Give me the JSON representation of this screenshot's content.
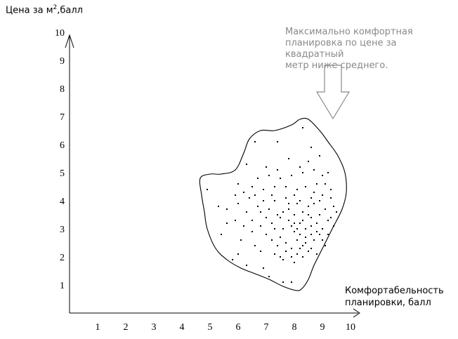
{
  "y_axis_title": {
    "prefix": "Цена за м",
    "superscript": "2",
    "suffix": ",балл"
  },
  "x_axis_title": {
    "line1": "Комфортабельность",
    "line2": "планировки, балл"
  },
  "annotation": {
    "lines": [
      "Максимально комфортная",
      "планировка по цене за квадратный",
      "метр ниже среднего."
    ]
  },
  "x_ticks": [
    "1",
    "2",
    "3",
    "4",
    "5",
    "6",
    "7",
    "8",
    "9",
    "10"
  ],
  "y_ticks": [
    "1",
    "2",
    "3",
    "4",
    "5",
    "6",
    "7",
    "8",
    "9",
    "10"
  ],
  "chart_data": {
    "type": "scatter",
    "xlim": [
      0,
      10
    ],
    "ylim": [
      0,
      10
    ],
    "xlabel": "Комфортабельность планировки, балл",
    "ylabel": "Цена за м2,балл",
    "grid": false,
    "region_outline": [
      [
        4.65,
        4.8
      ],
      [
        4.7,
        4.2
      ],
      [
        4.8,
        3.6
      ],
      [
        4.9,
        3.0
      ],
      [
        5.2,
        2.3
      ],
      [
        5.6,
        1.9
      ],
      [
        6.1,
        1.6
      ],
      [
        6.6,
        1.4
      ],
      [
        7.1,
        1.2
      ],
      [
        7.6,
        0.95
      ],
      [
        8.1,
        0.8
      ],
      [
        8.3,
        0.9
      ],
      [
        8.5,
        1.2
      ],
      [
        8.7,
        1.7
      ],
      [
        9.0,
        2.3
      ],
      [
        9.35,
        3.0
      ],
      [
        9.7,
        3.7
      ],
      [
        9.85,
        4.3
      ],
      [
        9.8,
        5.0
      ],
      [
        9.55,
        5.6
      ],
      [
        9.2,
        6.1
      ],
      [
        8.9,
        6.5
      ],
      [
        8.5,
        6.9
      ],
      [
        8.2,
        6.9
      ],
      [
        7.9,
        6.7
      ],
      [
        7.3,
        6.5
      ],
      [
        6.8,
        6.5
      ],
      [
        6.4,
        6.2
      ],
      [
        6.2,
        5.7
      ],
      [
        5.9,
        5.1
      ],
      [
        5.4,
        4.95
      ],
      [
        5.0,
        4.95
      ]
    ],
    "points": [
      [
        6.6,
        6.1
      ],
      [
        7.4,
        6.1
      ],
      [
        8.3,
        6.6
      ],
      [
        8.6,
        5.9
      ],
      [
        8.9,
        5.6
      ],
      [
        7.8,
        5.5
      ],
      [
        8.5,
        5.4
      ],
      [
        6.3,
        5.3
      ],
      [
        6.0,
        4.6
      ],
      [
        6.4,
        4.1
      ],
      [
        6.9,
        4.4
      ],
      [
        7.3,
        4.5
      ],
      [
        7.7,
        4.5
      ],
      [
        8.1,
        4.4
      ],
      [
        8.4,
        4.5
      ],
      [
        8.7,
        4.3
      ],
      [
        9.0,
        4.2
      ],
      [
        9.3,
        4.1
      ],
      [
        9.4,
        3.8
      ],
      [
        4.9,
        4.4
      ],
      [
        5.3,
        3.8
      ],
      [
        5.6,
        3.7
      ],
      [
        5.9,
        3.3
      ],
      [
        6.2,
        3.1
      ],
      [
        6.5,
        3.3
      ],
      [
        6.8,
        3.6
      ],
      [
        7.0,
        3.4
      ],
      [
        7.2,
        3.2
      ],
      [
        7.4,
        3.5
      ],
      [
        7.6,
        3.0
      ],
      [
        7.8,
        3.3
      ],
      [
        8.0,
        3.5
      ],
      [
        8.2,
        3.2
      ],
      [
        8.4,
        3.0
      ],
      [
        8.6,
        3.4
      ],
      [
        8.8,
        3.2
      ],
      [
        9.0,
        3.0
      ],
      [
        9.2,
        3.3
      ],
      [
        7.5,
        2.7
      ],
      [
        7.7,
        2.5
      ],
      [
        7.9,
        2.3
      ],
      [
        8.1,
        2.6
      ],
      [
        8.3,
        2.4
      ],
      [
        8.5,
        2.2
      ],
      [
        8.7,
        2.6
      ],
      [
        8.9,
        2.8
      ],
      [
        7.3,
        2.1
      ],
      [
        7.6,
        1.9
      ],
      [
        8.0,
        1.8
      ],
      [
        8.3,
        2.0
      ],
      [
        6.0,
        2.1
      ],
      [
        5.8,
        1.9
      ],
      [
        6.3,
        1.7
      ],
      [
        6.9,
        1.6
      ],
      [
        7.1,
        1.3
      ],
      [
        7.6,
        1.1
      ],
      [
        7.9,
        1.1
      ],
      [
        5.4,
        2.8
      ],
      [
        5.6,
        3.2
      ],
      [
        6.1,
        2.6
      ],
      [
        6.6,
        2.4
      ],
      [
        7.0,
        2.8
      ],
      [
        7.3,
        3.0
      ],
      [
        7.5,
        3.4
      ],
      [
        7.8,
        3.7
      ],
      [
        8.1,
        3.9
      ],
      [
        8.3,
        3.6
      ],
      [
        8.5,
        3.8
      ],
      [
        8.7,
        3.9
      ],
      [
        8.9,
        3.5
      ],
      [
        9.1,
        3.7
      ],
      [
        9.3,
        3.4
      ],
      [
        7.9,
        3.1
      ],
      [
        8.0,
        2.9
      ],
      [
        8.2,
        2.8
      ],
      [
        8.4,
        2.7
      ],
      [
        8.6,
        3.1
      ],
      [
        8.8,
        2.9
      ],
      [
        9.0,
        2.6
      ],
      [
        7.4,
        2.4
      ],
      [
        7.2,
        2.6
      ],
      [
        6.8,
        2.2
      ],
      [
        6.5,
        2.9
      ],
      [
        6.8,
        3.1
      ],
      [
        7.1,
        3.7
      ],
      [
        7.3,
        4.0
      ],
      [
        7.7,
        4.1
      ],
      [
        8.0,
        4.2
      ],
      [
        8.2,
        4.0
      ],
      [
        8.6,
        4.1
      ],
      [
        8.8,
        4.6
      ],
      [
        9.0,
        4.9
      ],
      [
        8.3,
        5.0
      ],
      [
        7.9,
        4.9
      ],
      [
        7.5,
        4.8
      ],
      [
        7.1,
        4.9
      ],
      [
        7.0,
        5.2
      ],
      [
        7.4,
        5.1
      ],
      [
        8.2,
        5.2
      ],
      [
        8.7,
        5.1
      ],
      [
        9.2,
        5.0
      ],
      [
        6.7,
        4.8
      ],
      [
        6.5,
        4.5
      ],
      [
        6.2,
        4.3
      ],
      [
        6.0,
        3.9
      ],
      [
        6.3,
        3.6
      ],
      [
        6.7,
        3.8
      ],
      [
        5.9,
        4.2
      ],
      [
        7.6,
        3.6
      ],
      [
        7.8,
        3.9
      ],
      [
        8.0,
        3.2
      ],
      [
        8.1,
        3.0
      ],
      [
        8.3,
        3.3
      ],
      [
        8.5,
        3.5
      ],
      [
        8.6,
        2.8
      ],
      [
        8.4,
        2.5
      ],
      [
        8.2,
        2.3
      ],
      [
        7.9,
        2.0
      ],
      [
        7.7,
        2.2
      ],
      [
        7.5,
        2.0
      ],
      [
        8.1,
        2.1
      ],
      [
        8.6,
        2.3
      ],
      [
        8.8,
        2.1
      ],
      [
        9.1,
        2.4
      ],
      [
        9.2,
        2.8
      ],
      [
        9.4,
        3.1
      ],
      [
        9.5,
        3.6
      ],
      [
        9.3,
        4.4
      ],
      [
        9.1,
        4.6
      ],
      [
        8.9,
        4.0
      ],
      [
        7.2,
        4.2
      ],
      [
        6.9,
        4.0
      ],
      [
        6.6,
        4.2
      ]
    ]
  }
}
